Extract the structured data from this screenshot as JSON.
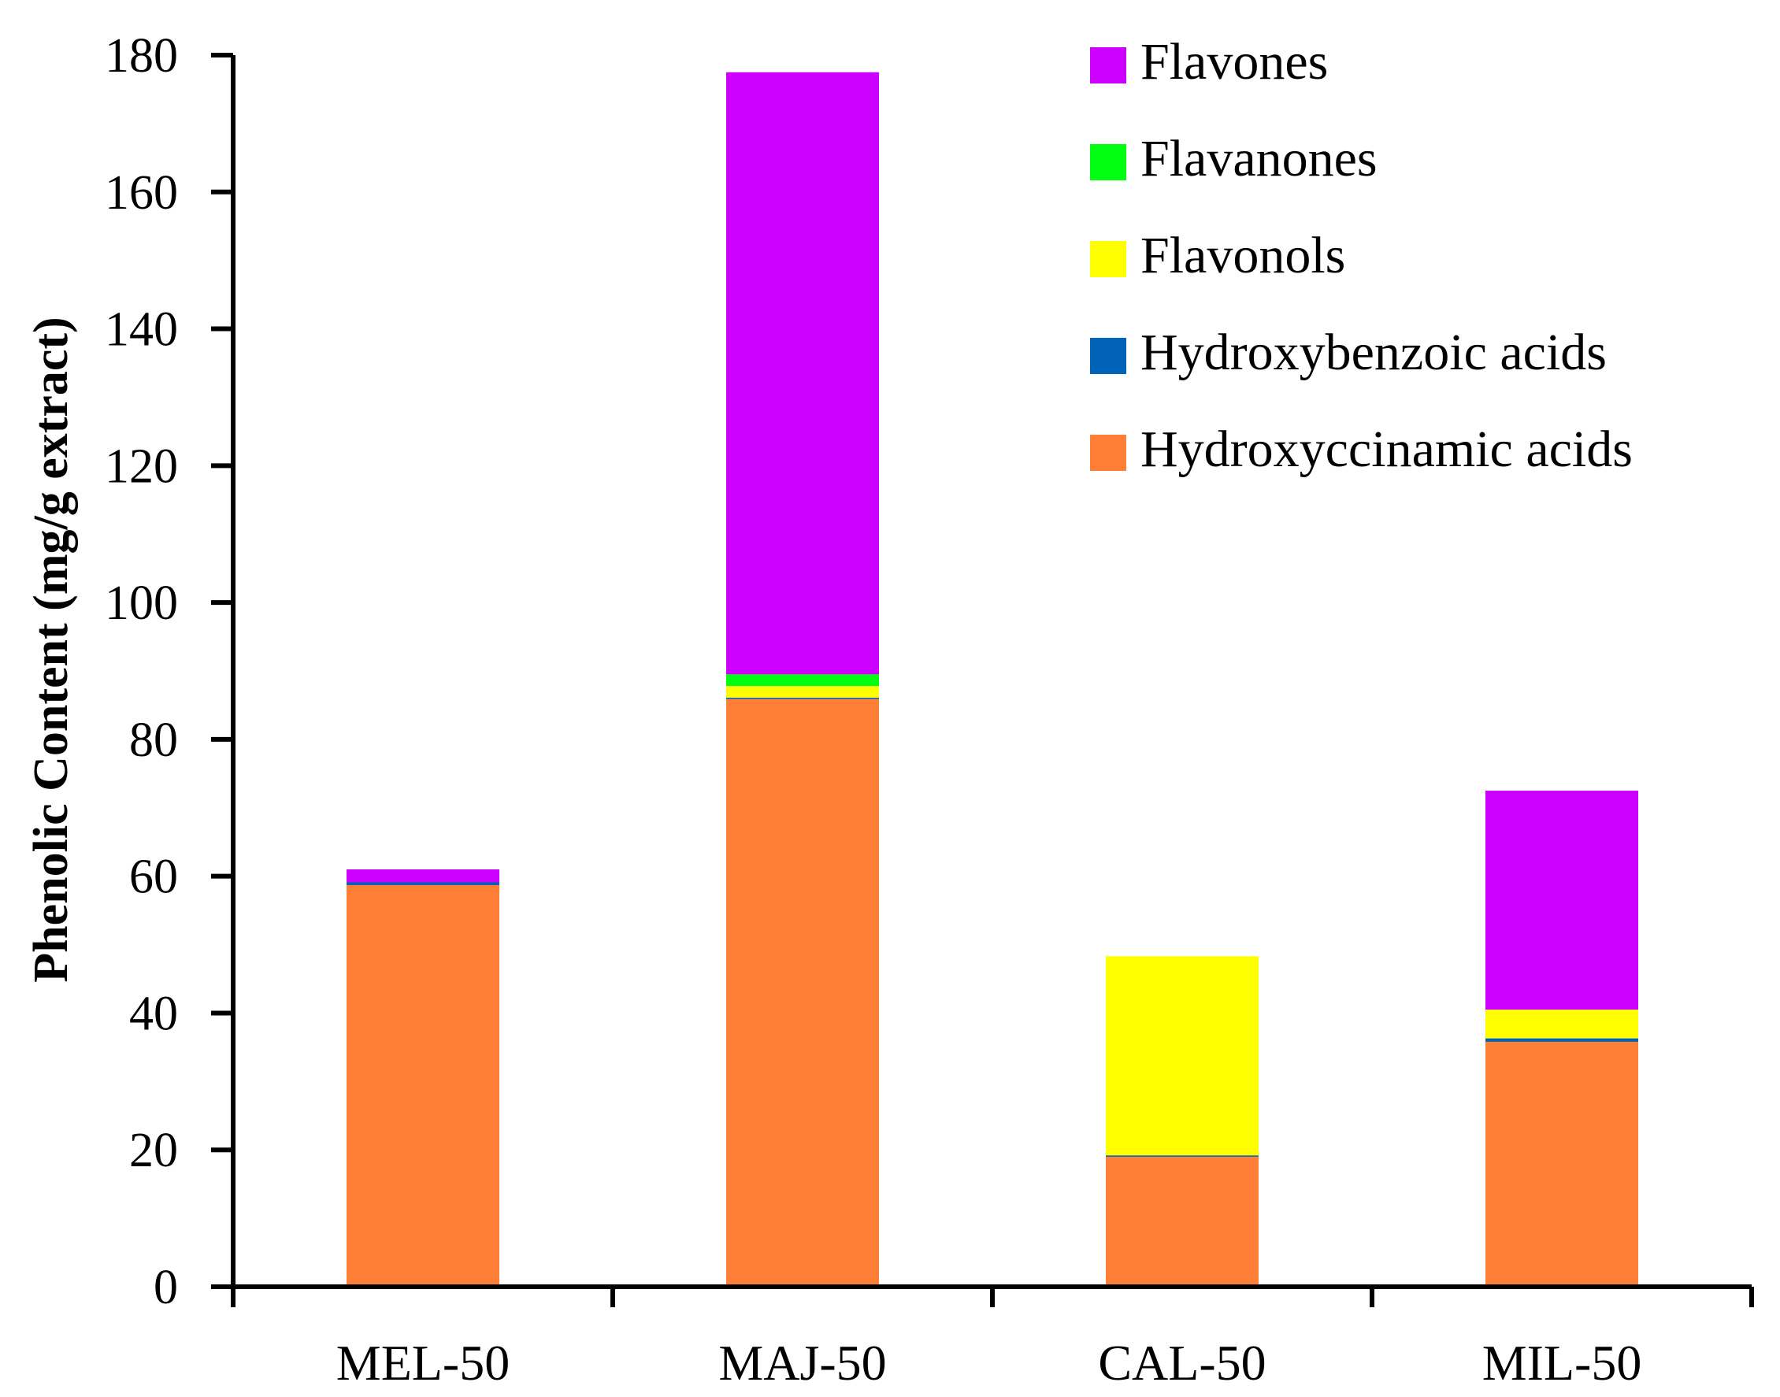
{
  "chart_data": {
    "type": "bar",
    "stacked": true,
    "title": "",
    "xlabel": "",
    "ylabel": "Phenolic Content (mg/g extract)",
    "ylim": [
      0,
      180
    ],
    "yticks": [
      0,
      20,
      40,
      60,
      80,
      100,
      120,
      140,
      160,
      180
    ],
    "grid": false,
    "legend_position": "top-right",
    "categories": [
      "MEL-50",
      "MAJ-50",
      "CAL-50",
      "MIL-50"
    ],
    "series": [
      {
        "name": "Hydroxyccinamic acids",
        "color": "#FF7F37",
        "values": [
          58.7,
          85.9,
          19.0,
          35.8
        ]
      },
      {
        "name": "Hydroxybenzoic acids",
        "color": "#0063B7",
        "values": [
          0.4,
          0.2,
          0.2,
          0.5
        ]
      },
      {
        "name": "Flavonols",
        "color": "#FFFF00",
        "values": [
          0.0,
          1.7,
          29.1,
          4.2
        ]
      },
      {
        "name": "Flavanones",
        "color": "#00FF11",
        "values": [
          0.0,
          1.7,
          0.0,
          0.0
        ]
      },
      {
        "name": "Flavones",
        "color": "#CC00FF",
        "values": [
          1.9,
          88.0,
          0.0,
          32.0
        ]
      }
    ],
    "legend_order": [
      "Flavones",
      "Flavanones",
      "Flavonols",
      "Hydroxybenzoic acids",
      "Hydroxyccinamic acids"
    ]
  }
}
